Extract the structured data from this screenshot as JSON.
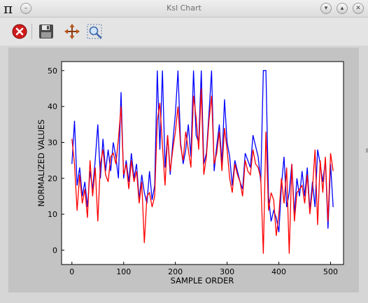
{
  "window": {
    "title": "Ksl Chart",
    "app_icon": "pi-icon",
    "controls": [
      "minimize-icon",
      "maximize-icon",
      "close-icon"
    ]
  },
  "toolbar": {
    "buttons": [
      "close-icon",
      "save-icon",
      "pan-icon",
      "zoom-icon"
    ]
  },
  "colors": {
    "series1": "#0000ff",
    "series2": "#ff0000",
    "frame": "#c3c3c3",
    "plot_background": "#ffffff"
  },
  "chart_data": {
    "type": "line",
    "title": "",
    "xlabel": "SAMPLE ORDER",
    "ylabel": "NORMALIZED VALUES",
    "xlim": [
      -20,
      525
    ],
    "ylim": [
      -4,
      52.5
    ],
    "xticks": [
      0,
      100,
      200,
      300,
      400,
      500
    ],
    "yticks": [
      0,
      10,
      20,
      30,
      40,
      50
    ],
    "grid": false,
    "legend": "none",
    "series": [
      {
        "color": "#0000ff",
        "x": [
          0,
          5,
          10,
          15,
          20,
          25,
          30,
          35,
          40,
          45,
          50,
          55,
          60,
          65,
          70,
          75,
          80,
          85,
          90,
          95,
          100,
          105,
          110,
          115,
          120,
          125,
          130,
          135,
          140,
          145,
          150,
          155,
          160,
          165,
          170,
          175,
          180,
          185,
          190,
          195,
          200,
          205,
          210,
          215,
          220,
          225,
          230,
          235,
          240,
          245,
          250,
          255,
          260,
          265,
          270,
          275,
          280,
          285,
          290,
          295,
          300,
          305,
          310,
          315,
          320,
          325,
          330,
          335,
          340,
          345,
          350,
          355,
          360,
          365,
          370,
          375,
          380,
          385,
          390,
          395,
          400,
          405,
          410,
          415,
          420,
          425,
          430,
          435,
          440,
          445,
          450,
          455,
          460,
          465,
          470,
          475,
          480,
          485,
          490,
          495,
          500,
          505
        ],
        "y": [
          24,
          36,
          18,
          23,
          15,
          19,
          12,
          22,
          17,
          25,
          35,
          20,
          31,
          22,
          28,
          22,
          30,
          26,
          20,
          44,
          20,
          25,
          19,
          27,
          20,
          24,
          14,
          21,
          16,
          13,
          22,
          14,
          18,
          50,
          28,
          50,
          23,
          32,
          21,
          30,
          38,
          50,
          30,
          24,
          28,
          35,
          26,
          50,
          32,
          30,
          50,
          24,
          27,
          38,
          50,
          22,
          29,
          35,
          24,
          42,
          30,
          26,
          18,
          25,
          22,
          19,
          17,
          27,
          25,
          23,
          32,
          29,
          26,
          19,
          50,
          50,
          15,
          8,
          11,
          9,
          5,
          18,
          26,
          12,
          16,
          24,
          10,
          20,
          15,
          22,
          15,
          23,
          11,
          19,
          12,
          28,
          24,
          19,
          25,
          6,
          24,
          12
        ]
      },
      {
        "color": "#ff0000",
        "x": [
          0,
          5,
          10,
          15,
          20,
          25,
          30,
          35,
          40,
          45,
          50,
          55,
          60,
          65,
          70,
          75,
          80,
          85,
          90,
          95,
          100,
          105,
          110,
          115,
          120,
          125,
          130,
          135,
          140,
          145,
          150,
          155,
          160,
          165,
          170,
          175,
          180,
          185,
          190,
          195,
          200,
          205,
          210,
          215,
          220,
          225,
          230,
          235,
          240,
          245,
          250,
          255,
          260,
          265,
          270,
          275,
          280,
          285,
          290,
          295,
          300,
          305,
          310,
          315,
          320,
          325,
          330,
          335,
          340,
          345,
          350,
          355,
          360,
          365,
          370,
          375,
          380,
          385,
          390,
          395,
          400,
          405,
          410,
          415,
          420,
          425,
          430,
          435,
          440,
          445,
          450,
          455,
          460,
          465,
          470,
          475,
          480,
          485,
          490,
          495,
          500,
          505
        ],
        "y": [
          31,
          24,
          11,
          21,
          13,
          17,
          9,
          25,
          15,
          23,
          8,
          24,
          28,
          21,
          19,
          26,
          27,
          24,
          31,
          40,
          21,
          24,
          17,
          25,
          19,
          22,
          13,
          19,
          2,
          15,
          16,
          12,
          15,
          36,
          41,
          29,
          18,
          32,
          22,
          28,
          33,
          40,
          29,
          25,
          33,
          28,
          23,
          43,
          37,
          28,
          45,
          21,
          26,
          36,
          43,
          24,
          27,
          33,
          22,
          34,
          28,
          20,
          16,
          24,
          21,
          19,
          15,
          25,
          22,
          21,
          28,
          24,
          23,
          20,
          -1,
          33,
          11,
          16,
          14,
          4,
          10,
          20,
          13,
          23,
          -1,
          24,
          8,
          16,
          17,
          18,
          13,
          21,
          10,
          17,
          28,
          7,
          25,
          16,
          26,
          8,
          27,
          22
        ]
      }
    ]
  }
}
